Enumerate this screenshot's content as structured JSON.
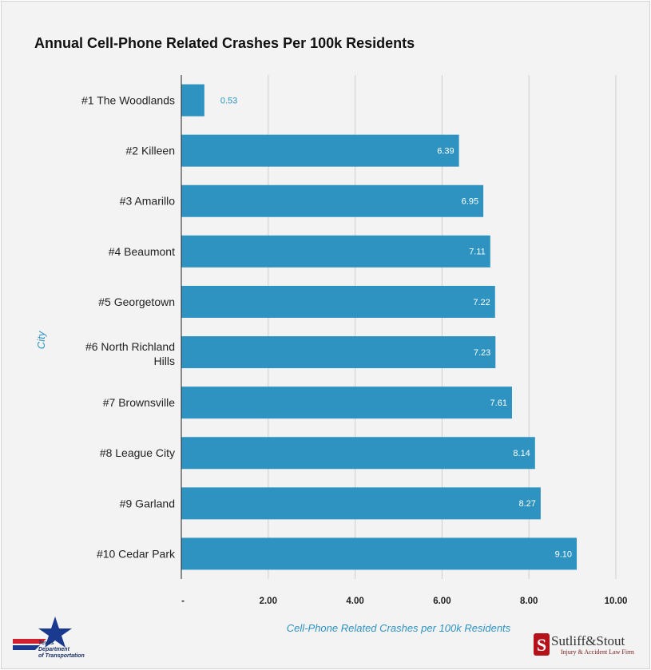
{
  "chart_data": {
    "type": "bar",
    "orientation": "horizontal",
    "title": "Annual Cell-Phone Related Crashes Per 100k Residents",
    "xlabel": "Cell-Phone Related Crashes per 100k Residents",
    "ylabel": "City",
    "xlim": [
      0,
      10
    ],
    "x_ticks": [
      "-",
      "2.00",
      "4.00",
      "6.00",
      "8.00",
      "10.00"
    ],
    "grid": "vertical",
    "categories": [
      "#1 The Woodlands",
      "#2 Killeen",
      "#3 Amarillo",
      "#4 Beaumont",
      "#5 Georgetown",
      "#6 North Richland Hills",
      "#7 Brownsville",
      "#8 League City",
      "#9 Garland",
      "#10 Cedar Park"
    ],
    "values": [
      0.53,
      6.39,
      6.95,
      7.11,
      7.22,
      7.23,
      7.61,
      8.14,
      8.27,
      9.1
    ],
    "value_labels": [
      "0.53",
      "6.39",
      "6.95",
      "7.11",
      "7.22",
      "7.23",
      "7.61",
      "8.14",
      "8.27",
      "9.10"
    ]
  },
  "logos": {
    "left": "Texas Department of Transportation",
    "left_lines": [
      "Texas",
      "Department",
      "of Transportation"
    ],
    "right": "Sutliff&Stout",
    "right_sub": "Injury & Accident Law Firm"
  },
  "colors": {
    "bar": "#2e93c1",
    "grid": "#cfcfcf",
    "background": "#f3f3f3",
    "label_inside": "#ffffff",
    "label_outside": "#2e93c1"
  }
}
